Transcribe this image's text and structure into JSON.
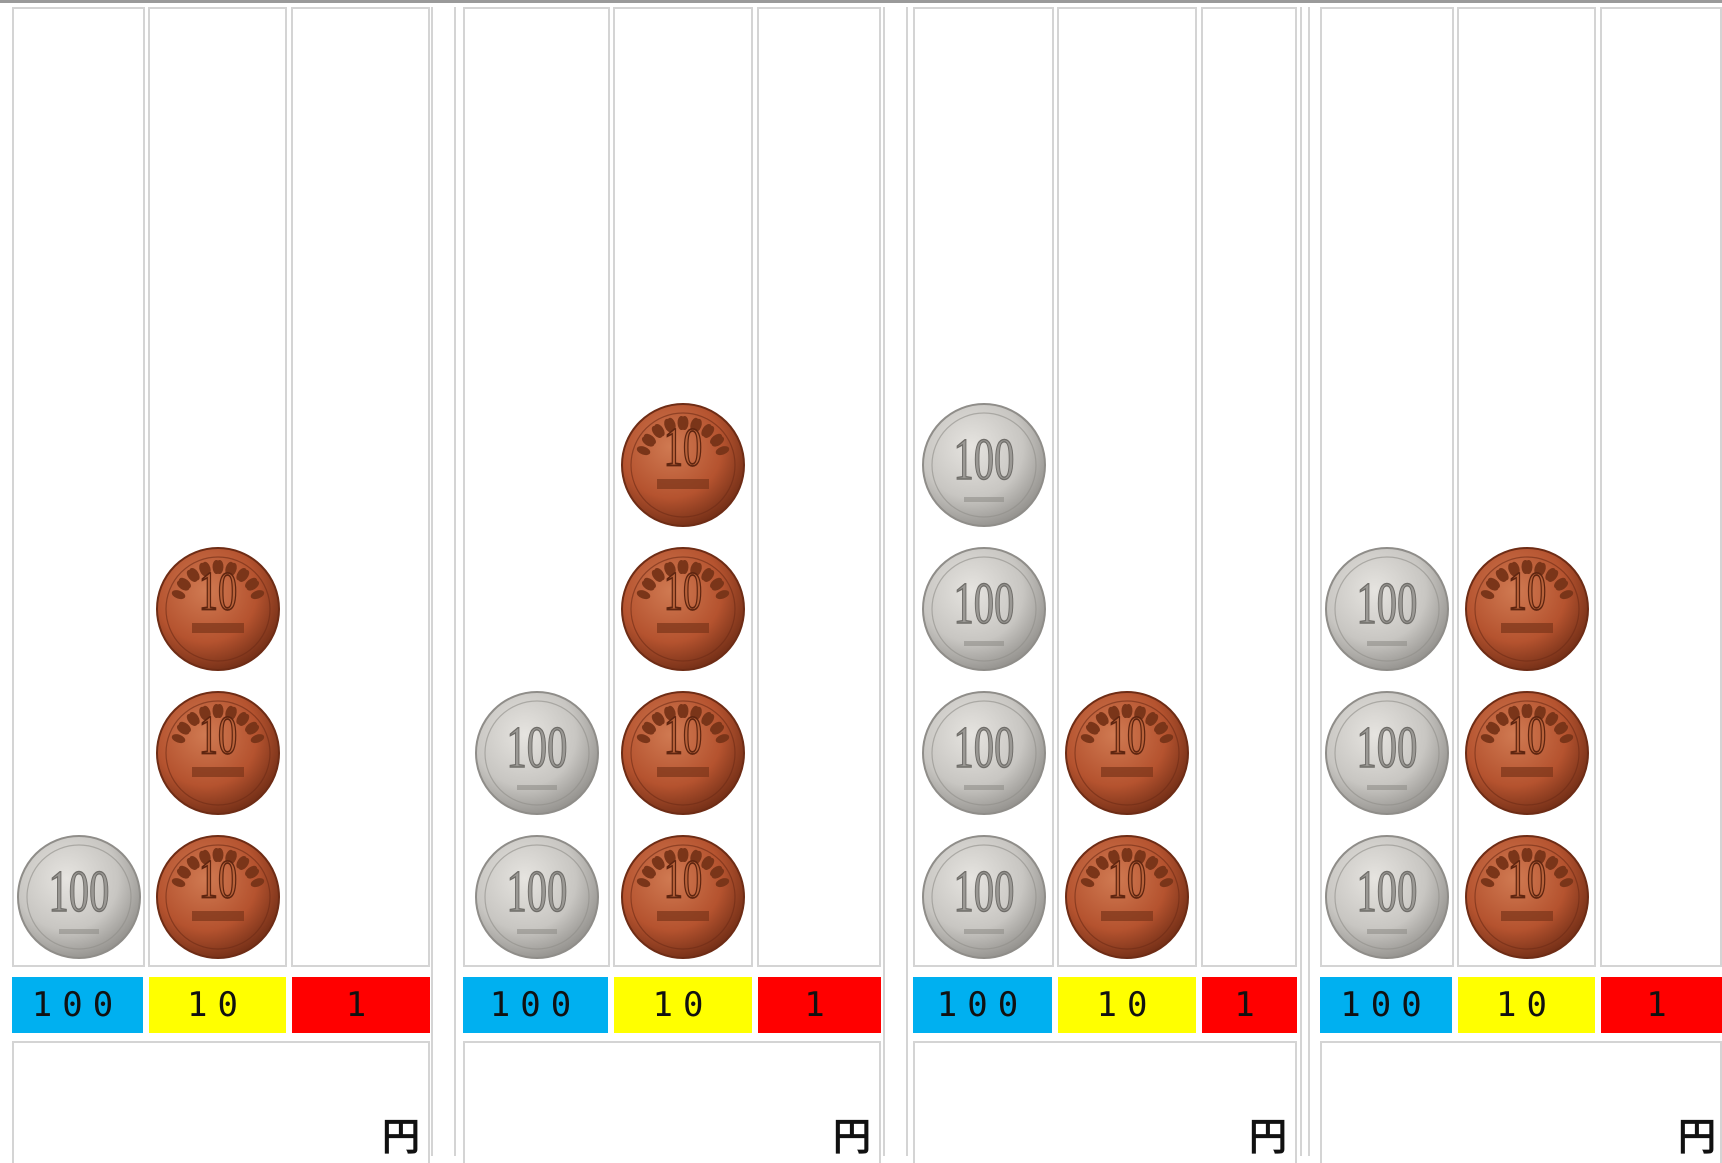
{
  "labels": {
    "hundreds": "100",
    "tens": "10",
    "ones": "1"
  },
  "label_colors": {
    "hundreds": "#00b0f0",
    "tens": "#ffff00",
    "ones": "#ff0000"
  },
  "coin_colors": {
    "hundred_yen": "#c8c6c2",
    "ten_yen": "#b5532f"
  },
  "yen_unit": "円",
  "problems": [
    {
      "hundreds": 1,
      "tens": 3,
      "ones": 0
    },
    {
      "hundreds": 2,
      "tens": 4,
      "ones": 0
    },
    {
      "hundreds": 4,
      "tens": 2,
      "ones": 0
    },
    {
      "hundreds": 3,
      "tens": 3,
      "ones": 0
    }
  ]
}
